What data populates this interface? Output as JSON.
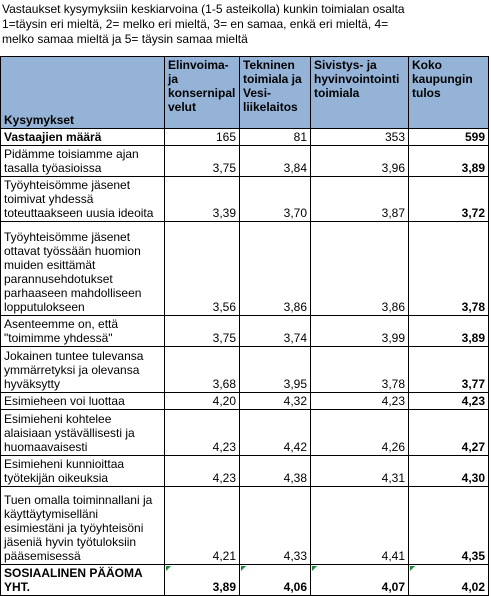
{
  "intro": [
    "Vastaukset kysymyksiin keskiarvoina (1-5 asteikolla) kunkin toimialan osalta",
    "1=täysin eri mieltä, 2= melko eri mieltä, 3= en samaa, enkä eri mieltä, 4=",
    "melko samaa mieltä ja 5= täysin samaa mieltä"
  ],
  "headers": {
    "label": "Kysymykset",
    "col1": "Elinvoima- ja konsernipal velut",
    "col2": "Tekninen toimiala ja Vesi- liikelaitos",
    "col3": "Sivistys- ja hyvinvointointi toimiala",
    "col4": "Koko kaupungin tulos"
  },
  "rows": [
    {
      "label": "Vastaajien määrä",
      "v1": "165",
      "v2": "81",
      "v3": "353",
      "v4": "599",
      "bold_label": true
    },
    {
      "label": "Pidämme toisiamme ajan tasalla työasioissa",
      "v1": "3,75",
      "v2": "3,84",
      "v3": "3,96",
      "v4": "3,89"
    },
    {
      "label": "Työyhteisömme jäsenet toimivat yhdessä toteuttaakseen uusia ideoita",
      "v1": "3,39",
      "v2": "3,70",
      "v3": "3,87",
      "v4": "3,72"
    },
    {
      "label": "Työyhteisömme jäsenet ottavat työssään huomion muiden esittämät parannusehdotukset parhaaseen mahdolliseen lopputulokseen",
      "v1": "3,56",
      "v2": "3,86",
      "v3": "3,86",
      "v4": "3,78"
    },
    {
      "label": "Asenteemme on, että \"toimimme yhdessä\"",
      "v1": "3,75",
      "v2": "3,74",
      "v3": "3,99",
      "v4": "3,89"
    },
    {
      "label": "Jokainen tuntee tulevansa ymmärretyksi ja olevansa hyväksytty",
      "v1": "3,68",
      "v2": "3,95",
      "v3": "3,78",
      "v4": "3,77"
    },
    {
      "label": "Esimieheen voi luottaa",
      "v1": "4,20",
      "v2": "4,32",
      "v3": "4,23",
      "v4": "4,23"
    },
    {
      "label": "Esimieheni kohtelee alaisiaan ystävällisesti ja huomaavaisesti",
      "v1": "4,23",
      "v2": "4,42",
      "v3": "4,26",
      "v4": "4,27"
    },
    {
      "label": "Esimieheni kunnioittaa työtekijän oikeuksia",
      "v1": "4,23",
      "v2": "4,38",
      "v3": "4,31",
      "v4": "4,30"
    },
    {
      "label": "Tuen omalla toiminnallani ja käyttäytymiselläni esimiestäni ja työyhteisöni jäseniä hyvin työtuloksiin pääsemisessä",
      "v1": "4,21",
      "v2": "4,33",
      "v3": "4,41",
      "v4": "4,35"
    },
    {
      "label": "SOSIAALINEN PÄÄOMA YHT.",
      "v1": "3,89",
      "v2": "4,06",
      "v3": "4,07",
      "v4": "4,02",
      "all_bold": true
    }
  ],
  "colors": {
    "header_fill": "#95b3d7",
    "error_marker": "#1f8a3b"
  }
}
